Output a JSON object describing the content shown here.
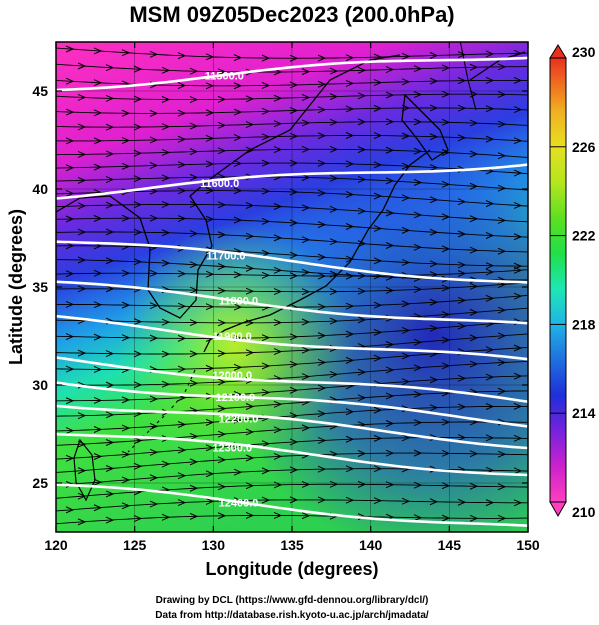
{
  "title": "MSM 09Z05Dec2023 (200.0hPa)",
  "xlabel": "Longitude (degrees)",
  "ylabel": "Latitude  (degrees)",
  "credits": {
    "line1": "Drawing by DCL (https://www.gfd-dennou.org/library/dcl/)",
    "line2": "Data from http://database.rish.kyoto-u.ac.jp/arch/jmadata/"
  },
  "chart_data": {
    "type": "heatmap",
    "xlim": [
      120,
      150
    ],
    "ylim": [
      22.5,
      47.5
    ],
    "xticks": [
      120,
      125,
      130,
      135,
      140,
      145,
      150
    ],
    "yticks": [
      25,
      30,
      35,
      40,
      45
    ],
    "grid": true,
    "colorbar": {
      "min": 210,
      "max": 230,
      "ticks": [
        210,
        214,
        218,
        222,
        226,
        230
      ],
      "colors": [
        "#ff3fbf",
        "#cc22cc",
        "#7722dd",
        "#1f2fd8",
        "#1f6fe0",
        "#1fb4e6",
        "#1fe6b4",
        "#1fe048",
        "#5ee020",
        "#b4e620",
        "#e6e020",
        "#f0b020",
        "#f07020",
        "#e83020"
      ]
    },
    "contours": [
      {
        "label": "11500.0",
        "lon": 130.7,
        "lat": 45.8
      },
      {
        "label": "11600.0",
        "lon": 130.4,
        "lat": 40.3
      },
      {
        "label": "11700.0",
        "lon": 130.8,
        "lat": 36.6
      },
      {
        "label": "11800.0",
        "lon": 131.6,
        "lat": 34.3
      },
      {
        "label": "11900.0",
        "lon": 131.2,
        "lat": 32.5
      },
      {
        "label": "12000.0",
        "lon": 131.2,
        "lat": 30.5
      },
      {
        "label": "12100.0",
        "lon": 131.4,
        "lat": 29.4
      },
      {
        "label": "12200.0",
        "lon": 131.6,
        "lat": 28.3
      },
      {
        "label": "12300.0",
        "lon": 131.2,
        "lat": 26.8
      },
      {
        "label": "12400.0",
        "lon": 131.6,
        "lat": 24.0
      }
    ]
  }
}
